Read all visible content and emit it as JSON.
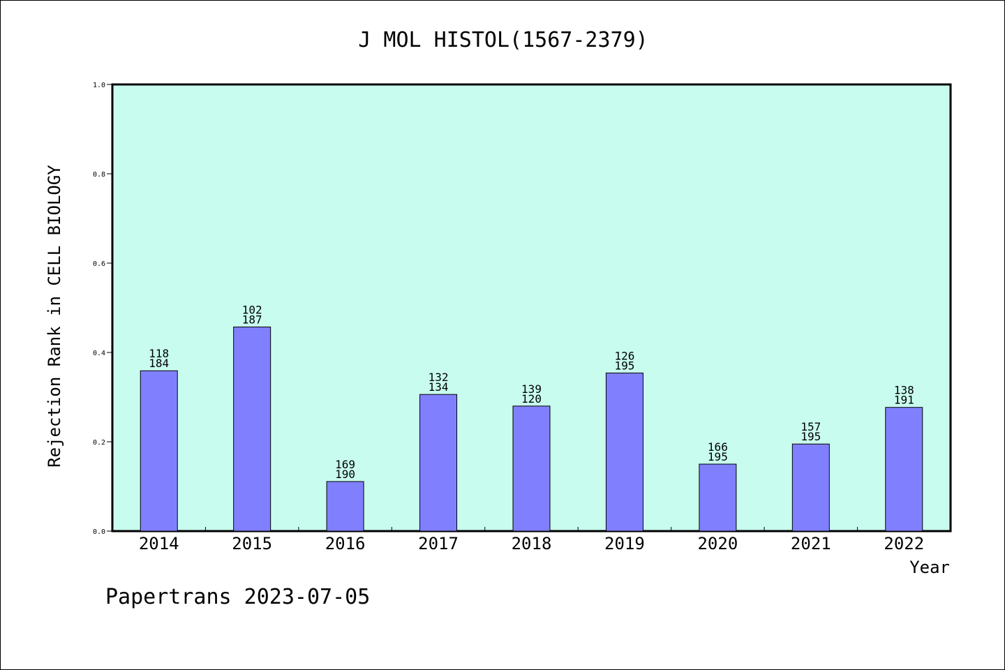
{
  "chart_data": {
    "type": "bar",
    "title": "J MOL HISTOL(1567-2379)",
    "xlabel": "Year",
    "ylabel": "Rejection Rank in CELL BIOLOGY",
    "ylim": [
      0,
      1.0
    ],
    "yticks": [
      "0.0",
      "0.2",
      "0.4",
      "0.6",
      "0.8",
      "1.0"
    ],
    "categories": [
      "2014",
      "2015",
      "2016",
      "2017",
      "2018",
      "2019",
      "2020",
      "2021",
      "2022"
    ],
    "values": [
      0.359,
      0.457,
      0.111,
      0.306,
      0.28,
      0.354,
      0.15,
      0.195,
      0.277
    ],
    "label_top": [
      "118",
      "102",
      "169",
      "132",
      "139",
      "126",
      "166",
      "157",
      "138"
    ],
    "label_bottom": [
      "184",
      "187",
      "190",
      "134",
      "120",
      "195",
      "195",
      "195",
      "191"
    ],
    "colors": {
      "plot_bg": "#c8fcee",
      "bar": "#8080ff"
    },
    "grid": false,
    "legend": "none"
  },
  "footer": "Papertrans 2023-07-05"
}
